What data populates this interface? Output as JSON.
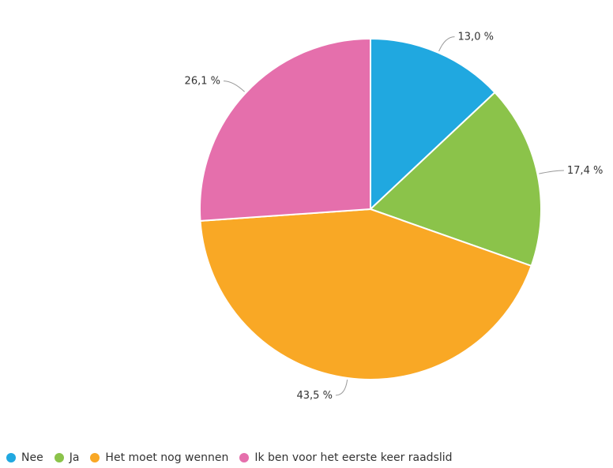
{
  "chart_data": {
    "type": "pie",
    "title": "",
    "slices": [
      {
        "name": "Nee",
        "value": 13.0,
        "label": "13,0 %",
        "color": "#20a8e0"
      },
      {
        "name": "Ja",
        "value": 17.4,
        "label": "17,4 %",
        "color": "#8bc34a"
      },
      {
        "name": "Het moet nog wennen",
        "value": 43.5,
        "label": "43,5 %",
        "color": "#f9a825"
      },
      {
        "name": "Ik ben voor het eerste keer raadslid",
        "value": 26.1,
        "label": "26,1 %",
        "color": "#e56fac"
      }
    ],
    "start_angle_deg": 0,
    "direction": "clockwise",
    "legend_position": "bottom-left"
  }
}
